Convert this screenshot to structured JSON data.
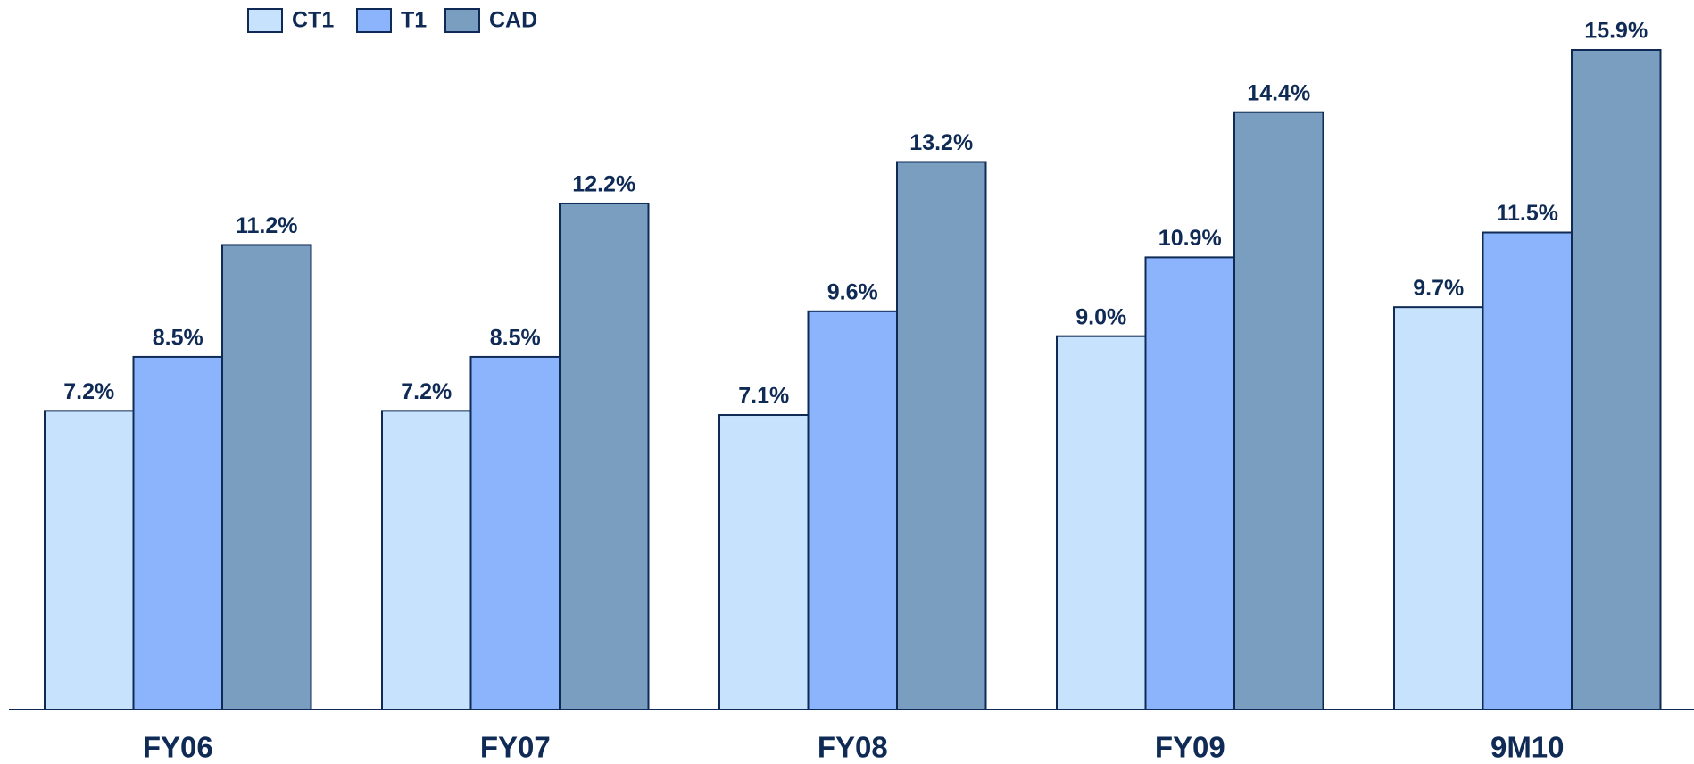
{
  "chart_data": {
    "type": "bar",
    "categories": [
      "FY06",
      "FY07",
      "FY08",
      "FY09",
      "9M10"
    ],
    "series": [
      {
        "name": "CT1",
        "color": "#c6e2fc",
        "values": [
          7.2,
          7.2,
          7.1,
          9.0,
          9.7
        ],
        "value_labels": [
          "7.2%",
          "7.2%",
          "7.1%",
          "9.0%",
          "9.7%"
        ]
      },
      {
        "name": "T1",
        "color": "#8cb4fc",
        "values": [
          8.5,
          8.5,
          9.6,
          10.9,
          11.5
        ],
        "value_labels": [
          "8.5%",
          "8.5%",
          "9.6%",
          "10.9%",
          "11.5%"
        ]
      },
      {
        "name": "CAD",
        "color": "#7a9ec0",
        "values": [
          11.2,
          12.2,
          13.2,
          14.4,
          15.9
        ],
        "value_labels": [
          "11.2%",
          "12.2%",
          "13.2%",
          "14.4%",
          "15.9%"
        ]
      }
    ],
    "legend": "upper-left"
  }
}
